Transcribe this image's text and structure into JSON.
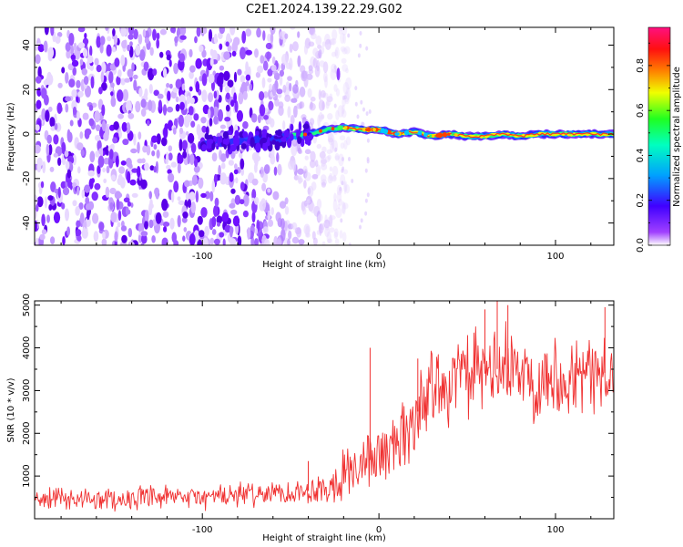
{
  "title": "C2E1.2024.139.22.29.G02",
  "chart_data": [
    {
      "type": "heatmap",
      "title": "C2E1.2024.139.22.29.G02",
      "xlabel": "Height of straight line (km)",
      "ylabel": "Frequency (Hz)",
      "xlim": [
        -195,
        133
      ],
      "ylim": [
        -50,
        48
      ],
      "x_ticks": [
        -100,
        0,
        100
      ],
      "y_ticks": [
        -40,
        -20,
        0,
        20,
        40
      ],
      "x_tick_labels": [
        "-100",
        "0",
        "100"
      ],
      "y_tick_labels": [
        "-40",
        "-20",
        "0",
        "20",
        "40"
      ],
      "colorbar": {
        "label": "Normalized spectral amplitude",
        "range": [
          0,
          0.97
        ],
        "ticks": [
          0.0,
          0.2,
          0.4,
          0.6,
          0.8
        ],
        "tick_labels": [
          "0.0",
          "0.2",
          "0.4",
          "0.6",
          "0.8"
        ],
        "colormap": [
          "#ffffff",
          "#8000ff",
          "#0000ff",
          "#00c0ff",
          "#00ff40",
          "#ffff00",
          "#ff8000",
          "#ff0000",
          "#ff1080"
        ]
      },
      "description_series": [
        {
          "name": "signal_ridge_freq_hz",
          "x": [
            -100,
            -80,
            -60,
            -40,
            -30,
            -20,
            -10,
            0,
            10,
            20,
            30,
            40,
            50,
            60,
            70,
            80,
            90,
            100,
            110,
            120,
            133
          ],
          "values": [
            -4,
            -3,
            -2,
            0,
            2,
            3,
            2,
            2,
            0,
            1,
            -1,
            0,
            -1,
            -1,
            0,
            -1,
            0,
            0,
            0,
            0,
            0
          ]
        },
        {
          "name": "noise_region_x_extent_km",
          "values": [
            -195,
            -25
          ]
        }
      ]
    },
    {
      "type": "line",
      "xlabel": "Height of straight line (km)",
      "ylabel": "SNR (10 * v/v)",
      "xlim": [
        -195,
        133
      ],
      "ylim": [
        0,
        5100
      ],
      "x_ticks": [
        -100,
        0,
        100
      ],
      "y_ticks": [
        1000,
        2000,
        3000,
        4000,
        5000
      ],
      "x_tick_labels": [
        "-100",
        "0",
        "100"
      ],
      "y_tick_labels": [
        "1000",
        "2000",
        "3000",
        "4000",
        "5000"
      ],
      "color": "#f03030",
      "series": [
        {
          "name": "SNR mean envelope",
          "x": [
            -195,
            -170,
            -150,
            -120,
            -100,
            -80,
            -60,
            -40,
            -30,
            -20,
            -10,
            0,
            10,
            15,
            20,
            25,
            30,
            40,
            50,
            60,
            70,
            80,
            90,
            100,
            110,
            120,
            133
          ],
          "values": [
            450,
            470,
            460,
            480,
            500,
            550,
            600,
            650,
            750,
            1050,
            1250,
            1500,
            1750,
            1900,
            2350,
            2750,
            3050,
            3250,
            3350,
            3400,
            3550,
            3400,
            3300,
            3350,
            3400,
            3350,
            3450
          ]
        },
        {
          "name": "SNR spread",
          "x": [
            -195,
            -40,
            -30,
            0,
            20,
            40,
            133
          ],
          "values": [
            300,
            350,
            600,
            900,
            1100,
            1200,
            1100
          ]
        }
      ],
      "peaks": [
        {
          "x": -40,
          "y": 1350
        },
        {
          "x": -5,
          "y": 4000
        },
        {
          "x": 22,
          "y": 3750
        },
        {
          "x": 60,
          "y": 4900
        },
        {
          "x": 67,
          "y": 5100
        },
        {
          "x": 73,
          "y": 5000
        },
        {
          "x": 128,
          "y": 4950
        }
      ]
    }
  ]
}
